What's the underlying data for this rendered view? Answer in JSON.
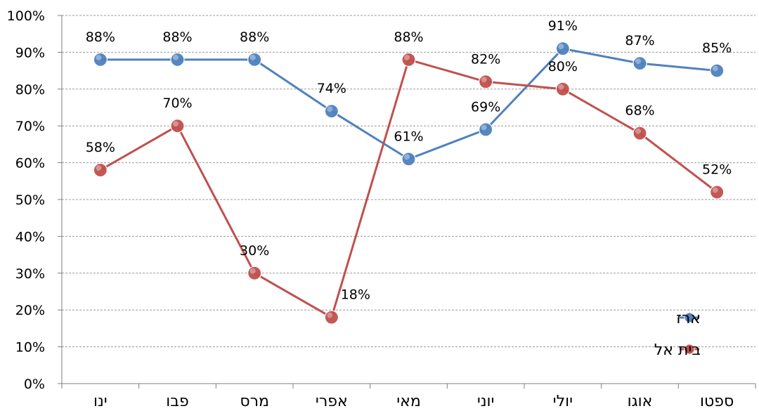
{
  "colors": {
    "erez": "#4f81bd",
    "beitel": "#c0504d",
    "grid": "#999999",
    "axis": "#7f7f7f"
  },
  "chart_data": {
    "type": "line",
    "categories": [
      "ינו",
      "פבו",
      "מרס",
      "אפרי",
      "מאי",
      "יוני",
      "יולי",
      "אוגו",
      "ספטו"
    ],
    "series": [
      {
        "name": "ארז",
        "values": [
          88,
          88,
          88,
          74,
          61,
          69,
          91,
          87,
          85
        ],
        "labels": [
          "88%",
          "88%",
          "88%",
          "74%",
          "61%",
          "69%",
          "91%",
          "87%",
          "85%"
        ],
        "color": "#4f81bd"
      },
      {
        "name": "בית אל",
        "values": [
          58,
          70,
          30,
          18,
          88,
          82,
          80,
          68,
          52
        ],
        "labels": [
          "58%",
          "70%",
          "30%",
          "18%",
          "88%",
          "82%",
          "80%",
          "68%",
          "52%"
        ],
        "color": "#c0504d"
      }
    ],
    "y_ticks": [
      "0%",
      "10%",
      "20%",
      "30%",
      "40%",
      "50%",
      "60%",
      "70%",
      "80%",
      "90%",
      "100%"
    ],
    "ylim": [
      0,
      100
    ],
    "grid": true,
    "legend": "right"
  }
}
